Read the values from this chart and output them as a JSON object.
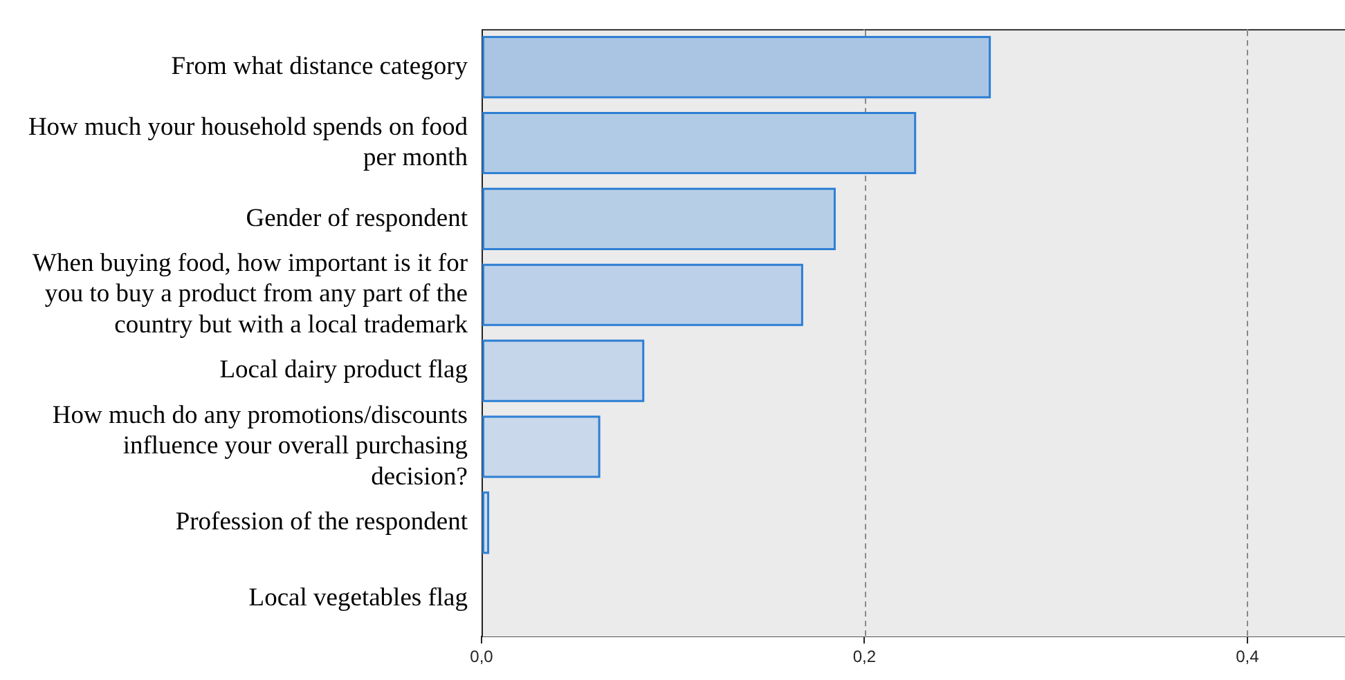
{
  "chart_data": {
    "type": "bar",
    "orientation": "horizontal",
    "categories": [
      "From what distance category",
      "How much your household spends on food per month",
      "Gender of respondent",
      "When buying food, how important is it for you to buy a product from any part of the country but with a local trademark",
      "Local dairy product flag",
      "How much do any promotions/discounts influence your overall purchasing decision?",
      "Profession of the respondent",
      "Local vegetables flag"
    ],
    "series": [
      {
        "color": "#2e7fd4",
        "colors": [
          "#a9c5e3",
          "#b1cae6",
          "#b7cee7",
          "#bcd1e9",
          "#c6d6ea",
          "#c9d8ea",
          "#cfdcec",
          "#d5e0ee"
        ],
        "values": [
          0.266,
          0.227,
          0.185,
          0.168,
          0.085,
          0.062,
          0.004,
          0
        ]
      }
    ],
    "xlim": [
      0,
      0.451
    ],
    "xticks": [
      {
        "value": 0,
        "label": "0,0"
      },
      {
        "value": 0.2,
        "label": "0,2"
      },
      {
        "value": 0.4,
        "label": "0,4"
      }
    ],
    "grid": "x"
  }
}
